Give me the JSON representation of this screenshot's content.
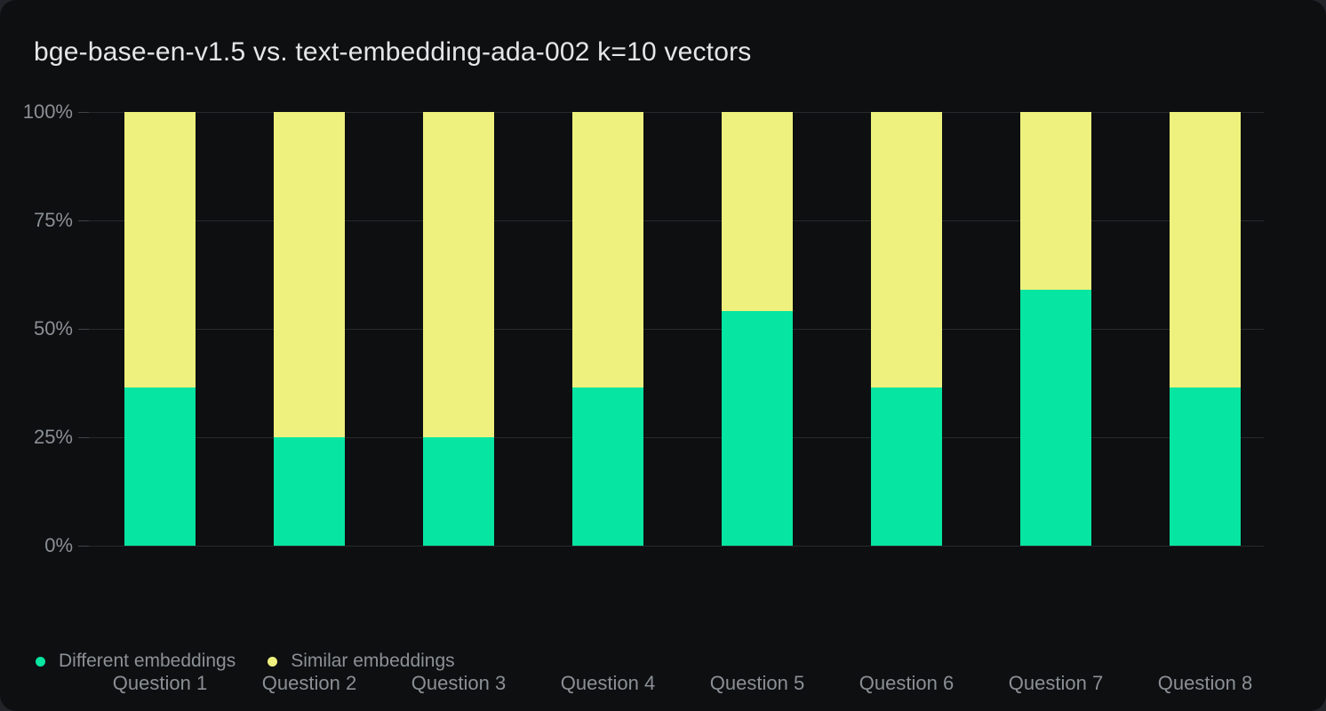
{
  "page": {
    "background": "#212429",
    "card_background": "#0d0f10"
  },
  "header": {
    "title": "bge-base-en-v1.5 vs. text-embedding-ada-002 k=10 vectors"
  },
  "colors": {
    "different": "#06e5a1",
    "similar": "#eef17d",
    "gridline": "#27292c",
    "axis_text": "#8b9096",
    "title_text": "#e4e6e8"
  },
  "chart_data": {
    "type": "bar",
    "stacked": true,
    "title": "bge-base-en-v1.5 vs. text-embedding-ada-002 k=10 vectors",
    "categories": [
      "Question 1",
      "Question 2",
      "Question 3",
      "Question 4",
      "Question 5",
      "Question 6",
      "Question 7",
      "Question 8"
    ],
    "series": [
      {
        "name": "Different embeddings",
        "color": "#06e5a1",
        "values": [
          36.4,
          25,
          25,
          36.4,
          54,
          36.4,
          59,
          36.4
        ]
      },
      {
        "name": "Similar embeddings",
        "color": "#eef17d",
        "values": [
          63.6,
          75,
          75,
          63.6,
          46,
          63.6,
          41,
          63.6
        ]
      }
    ],
    "xlabel": "",
    "ylabel": "",
    "ylim": [
      0,
      100
    ],
    "y_ticks": [
      "100%",
      "75%",
      "50%",
      "25%",
      "0%"
    ],
    "y_tick_values": [
      100,
      75,
      50,
      25,
      0
    ],
    "grid": "horizontal",
    "legend_position": "bottom-left"
  },
  "legend": {
    "items": [
      {
        "label": "Different embeddings",
        "color": "#06e5a1"
      },
      {
        "label": "Similar embeddings",
        "color": "#eef17d"
      }
    ]
  }
}
